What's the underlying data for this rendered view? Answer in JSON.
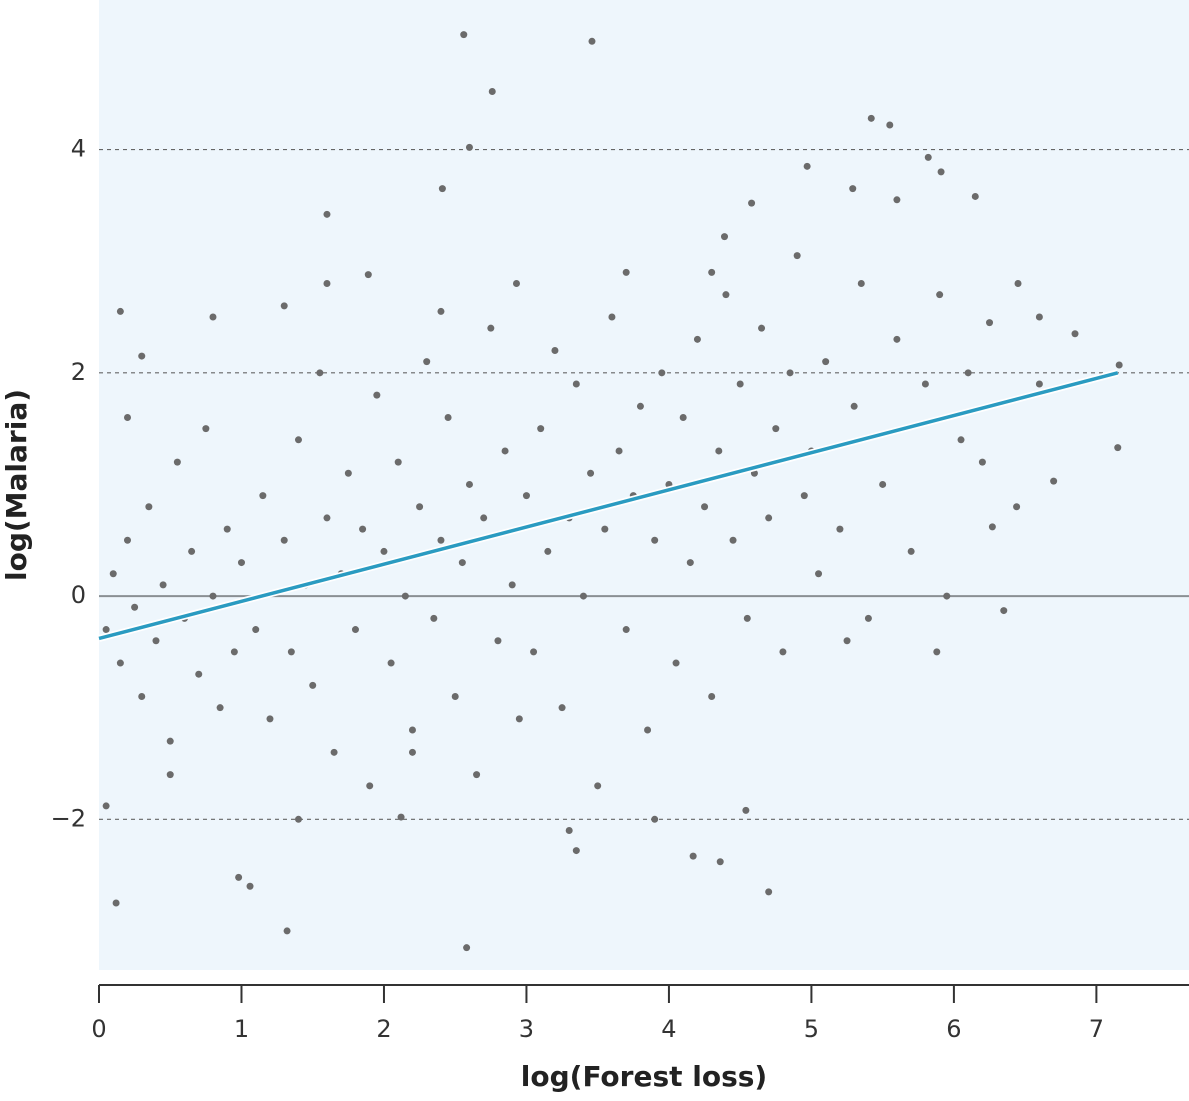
{
  "chart_data": {
    "type": "scatter",
    "xlabel": "log(Forest loss)",
    "ylabel": "log(Malaria)",
    "color": "#6b6b6b",
    "xlim": [
      0,
      7.65
    ],
    "ylim": [
      -3.35,
      5.34
    ],
    "xticks": [
      0,
      1,
      2,
      3,
      4,
      5,
      6,
      7
    ],
    "yticks": [
      {
        "value": -2,
        "label": "−2"
      },
      0,
      2,
      4
    ],
    "grid": true,
    "x": [
      2.56,
      3.46,
      2.76,
      2.6,
      2.41,
      1.6,
      5.42,
      5.55,
      5.82,
      4.97,
      5.91,
      6.15,
      5.29,
      5.6,
      4.58,
      4.39,
      1.89,
      2.93,
      0.15,
      0.12,
      0.98,
      1.06,
      1.32,
      2.58,
      3.35,
      4.17,
      4.36,
      4.7,
      4.54,
      3.9,
      2.12,
      0.05,
      7.16,
      7.15,
      6.44,
      6.35,
      5.88,
      6.27,
      6.7,
      0.05,
      0.1,
      0.15,
      0.2,
      0.25,
      0.3,
      0.35,
      0.4,
      0.45,
      0.5,
      0.55,
      0.6,
      0.65,
      0.7,
      0.75,
      0.8,
      0.85,
      0.9,
      0.95,
      0.3,
      0.8,
      0.5,
      0.2,
      1.0,
      1.1,
      1.15,
      1.2,
      1.3,
      1.35,
      1.4,
      1.45,
      1.5,
      1.55,
      1.6,
      1.65,
      1.7,
      1.75,
      1.8,
      1.85,
      1.9,
      1.95,
      1.3,
      1.6,
      1.4,
      2.0,
      2.05,
      2.1,
      2.15,
      2.2,
      2.25,
      2.3,
      2.35,
      2.4,
      2.45,
      2.5,
      2.55,
      2.6,
      2.65,
      2.7,
      2.75,
      2.8,
      2.85,
      2.9,
      2.95,
      2.4,
      2.2,
      3.0,
      3.05,
      3.1,
      3.15,
      3.2,
      3.25,
      3.3,
      3.35,
      3.4,
      3.45,
      3.5,
      3.55,
      3.6,
      3.65,
      3.7,
      3.75,
      3.8,
      3.85,
      3.9,
      3.95,
      3.7,
      3.3,
      4.0,
      4.05,
      4.1,
      4.15,
      4.2,
      4.25,
      4.3,
      4.35,
      4.4,
      4.45,
      4.5,
      4.55,
      4.6,
      4.65,
      4.7,
      4.75,
      4.8,
      4.85,
      4.9,
      4.95,
      4.3,
      5.0,
      5.05,
      5.1,
      5.2,
      5.3,
      5.35,
      5.4,
      5.5,
      5.6,
      5.7,
      5.8,
      5.9,
      5.95,
      5.25,
      6.05,
      6.1,
      6.25,
      6.45,
      6.6,
      6.85,
      6.6,
      6.2
    ],
    "values": [
      5.03,
      4.97,
      4.52,
      4.02,
      3.65,
      3.42,
      4.28,
      4.22,
      3.93,
      3.85,
      3.8,
      3.58,
      3.65,
      3.55,
      3.52,
      3.22,
      2.88,
      2.8,
      2.55,
      -2.75,
      -2.52,
      -2.6,
      -3.0,
      -3.15,
      -2.28,
      -2.33,
      -2.38,
      -2.65,
      -1.92,
      -2.0,
      -1.98,
      -1.88,
      2.07,
      1.33,
      0.8,
      -0.13,
      -0.5,
      0.62,
      1.03,
      -0.3,
      0.2,
      -0.6,
      0.5,
      -0.1,
      -0.9,
      0.8,
      -0.4,
      0.1,
      -1.3,
      1.2,
      -0.2,
      0.4,
      -0.7,
      1.5,
      0.0,
      -1.0,
      0.6,
      -0.5,
      2.15,
      2.5,
      -1.6,
      1.6,
      0.3,
      -0.3,
      0.9,
      -1.1,
      0.5,
      -0.5,
      1.4,
      0.1,
      -0.8,
      2.0,
      0.7,
      -1.4,
      0.2,
      1.1,
      -0.3,
      0.6,
      -1.7,
      1.8,
      2.6,
      2.8,
      -2.0,
      0.4,
      -0.6,
      1.2,
      0.0,
      -1.2,
      0.8,
      2.1,
      -0.2,
      0.5,
      1.6,
      -0.9,
      0.3,
      1.0,
      -1.6,
      0.7,
      2.4,
      -0.4,
      1.3,
      0.1,
      -1.1,
      2.55,
      -1.4,
      0.9,
      -0.5,
      1.5,
      0.4,
      2.2,
      -1.0,
      0.7,
      1.9,
      0.0,
      1.1,
      -1.7,
      0.6,
      2.5,
      1.3,
      -0.3,
      0.9,
      1.7,
      -1.2,
      0.5,
      2.0,
      2.9,
      -2.1,
      1.0,
      -0.6,
      1.6,
      0.3,
      2.3,
      0.8,
      -0.9,
      1.3,
      2.7,
      0.5,
      1.9,
      -0.2,
      1.1,
      2.4,
      0.7,
      1.5,
      -0.5,
      2.0,
      3.05,
      0.9,
      2.9,
      1.3,
      0.2,
      2.1,
      0.6,
      1.7,
      2.8,
      -0.2,
      1.0,
      2.3,
      0.4,
      1.9,
      2.7,
      0.0,
      -0.4,
      1.4,
      2.0,
      2.45,
      2.8,
      2.5,
      2.35,
      1.9,
      1.2
    ],
    "fit": {
      "x": [
        0,
        7.15
      ],
      "values": [
        -0.38,
        2.0
      ],
      "color": "#2a9bc1"
    }
  }
}
